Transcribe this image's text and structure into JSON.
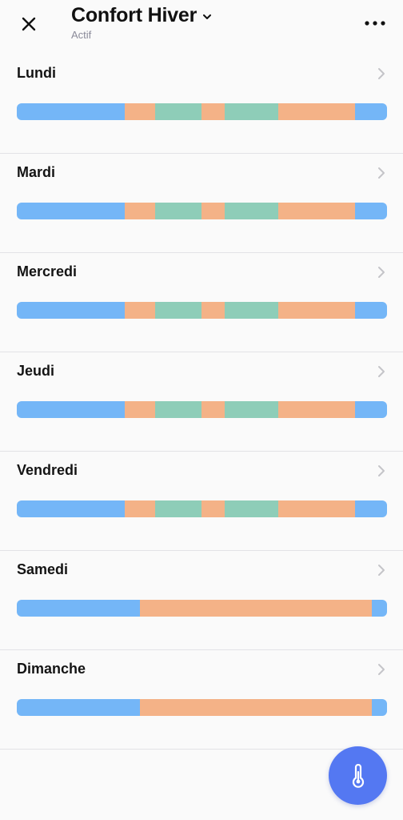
{
  "header": {
    "close_icon": "close-icon",
    "title": "Confort Hiver",
    "dropdown_icon": "chevron-down-icon",
    "subtitle": "Actif",
    "more_icon": "more-horizontal-icon"
  },
  "colors": {
    "eco": "#74b6f7",
    "confort": "#f4b287",
    "confort_plus": "#8ecdb8",
    "fab": "#5478f2"
  },
  "days": [
    {
      "label": "Lundi",
      "segments": [
        {
          "mode": "eco",
          "fraction": 0.291
        },
        {
          "mode": "confort",
          "fraction": 0.082
        },
        {
          "mode": "confort_plus",
          "fraction": 0.126
        },
        {
          "mode": "confort",
          "fraction": 0.063
        },
        {
          "mode": "confort_plus",
          "fraction": 0.145
        },
        {
          "mode": "confort",
          "fraction": 0.207
        },
        {
          "mode": "eco",
          "fraction": 0.086
        }
      ]
    },
    {
      "label": "Mardi",
      "segments": [
        {
          "mode": "eco",
          "fraction": 0.291
        },
        {
          "mode": "confort",
          "fraction": 0.082
        },
        {
          "mode": "confort_plus",
          "fraction": 0.126
        },
        {
          "mode": "confort",
          "fraction": 0.063
        },
        {
          "mode": "confort_plus",
          "fraction": 0.145
        },
        {
          "mode": "confort",
          "fraction": 0.207
        },
        {
          "mode": "eco",
          "fraction": 0.086
        }
      ]
    },
    {
      "label": "Mercredi",
      "segments": [
        {
          "mode": "eco",
          "fraction": 0.291
        },
        {
          "mode": "confort",
          "fraction": 0.082
        },
        {
          "mode": "confort_plus",
          "fraction": 0.126
        },
        {
          "mode": "confort",
          "fraction": 0.063
        },
        {
          "mode": "confort_plus",
          "fraction": 0.145
        },
        {
          "mode": "confort",
          "fraction": 0.207
        },
        {
          "mode": "eco",
          "fraction": 0.086
        }
      ]
    },
    {
      "label": "Jeudi",
      "segments": [
        {
          "mode": "eco",
          "fraction": 0.291
        },
        {
          "mode": "confort",
          "fraction": 0.082
        },
        {
          "mode": "confort_plus",
          "fraction": 0.126
        },
        {
          "mode": "confort",
          "fraction": 0.063
        },
        {
          "mode": "confort_plus",
          "fraction": 0.145
        },
        {
          "mode": "confort",
          "fraction": 0.207
        },
        {
          "mode": "eco",
          "fraction": 0.086
        }
      ]
    },
    {
      "label": "Vendredi",
      "segments": [
        {
          "mode": "eco",
          "fraction": 0.291
        },
        {
          "mode": "confort",
          "fraction": 0.082
        },
        {
          "mode": "confort_plus",
          "fraction": 0.126
        },
        {
          "mode": "confort",
          "fraction": 0.063
        },
        {
          "mode": "confort_plus",
          "fraction": 0.145
        },
        {
          "mode": "confort",
          "fraction": 0.207
        },
        {
          "mode": "eco",
          "fraction": 0.086
        }
      ]
    },
    {
      "label": "Samedi",
      "segments": [
        {
          "mode": "eco",
          "fraction": 0.333
        },
        {
          "mode": "confort",
          "fraction": 0.626
        },
        {
          "mode": "eco",
          "fraction": 0.041
        }
      ]
    },
    {
      "label": "Dimanche",
      "segments": [
        {
          "mode": "eco",
          "fraction": 0.333
        },
        {
          "mode": "confort",
          "fraction": 0.626
        },
        {
          "mode": "eco",
          "fraction": 0.041
        }
      ]
    }
  ],
  "row_arrow_icon": "chevron-right-icon",
  "fab": {
    "icon": "thermometer-icon"
  }
}
